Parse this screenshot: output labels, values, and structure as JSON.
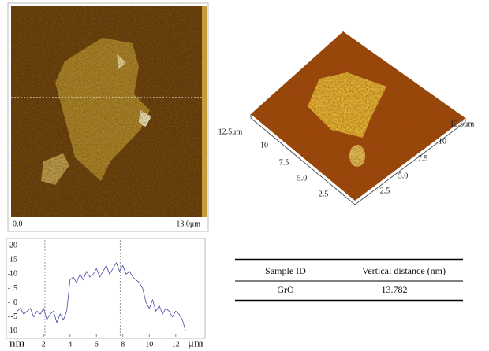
{
  "afm_2d": {
    "x_start": "0.0",
    "x_end": "13.0μm"
  },
  "afm_3d": {
    "left_axis": [
      "12.5μm",
      "10",
      "7.5",
      "5.0",
      "2.5"
    ],
    "right_axis": [
      "2.5",
      "5.0",
      "7.5",
      "10",
      "12.5μm"
    ]
  },
  "chart_data": {
    "type": "line",
    "x_unit": "μm",
    "y_unit": "nm",
    "color": "#4a4aa8",
    "x": [
      0,
      0.25,
      0.5,
      0.75,
      1,
      1.25,
      1.5,
      1.75,
      2,
      2.25,
      2.5,
      2.75,
      3,
      3.25,
      3.5,
      3.75,
      4,
      4.25,
      4.5,
      4.75,
      5,
      5.25,
      5.5,
      5.75,
      6,
      6.25,
      6.5,
      6.75,
      7,
      7.25,
      7.5,
      7.75,
      8,
      8.25,
      8.5,
      8.75,
      9,
      9.25,
      9.5,
      9.75,
      10,
      10.25,
      10.5,
      10.75,
      11,
      11.25,
      11.5,
      11.75,
      12,
      12.25,
      12.5,
      12.75
    ],
    "values": [
      -3,
      -2,
      -4,
      -3,
      -2,
      -5,
      -3,
      -4,
      -2,
      -6,
      -4,
      -3,
      -7,
      -4,
      -6,
      -3,
      8,
      9,
      7,
      10,
      8,
      11,
      9,
      10,
      12,
      9,
      11,
      13,
      10,
      12,
      14,
      11,
      13,
      10,
      11,
      9,
      8,
      7,
      5,
      0,
      -2,
      1,
      -3,
      -1,
      -4,
      -2,
      -3,
      -5,
      -3,
      -4,
      -6,
      -10
    ],
    "markers": [
      2.1,
      7.8
    ],
    "xlim": [
      -0.7,
      14.1
    ],
    "ylim": [
      -12,
      22
    ],
    "xticks": [
      2,
      4,
      6,
      8,
      10,
      12
    ],
    "yticks": [
      20,
      15,
      10,
      5,
      0,
      -5,
      -10
    ]
  },
  "table": {
    "headers": [
      "Sample ID",
      "Vertical distance (nm)"
    ],
    "rows": [
      [
        "GrO",
        "13.782"
      ]
    ]
  }
}
